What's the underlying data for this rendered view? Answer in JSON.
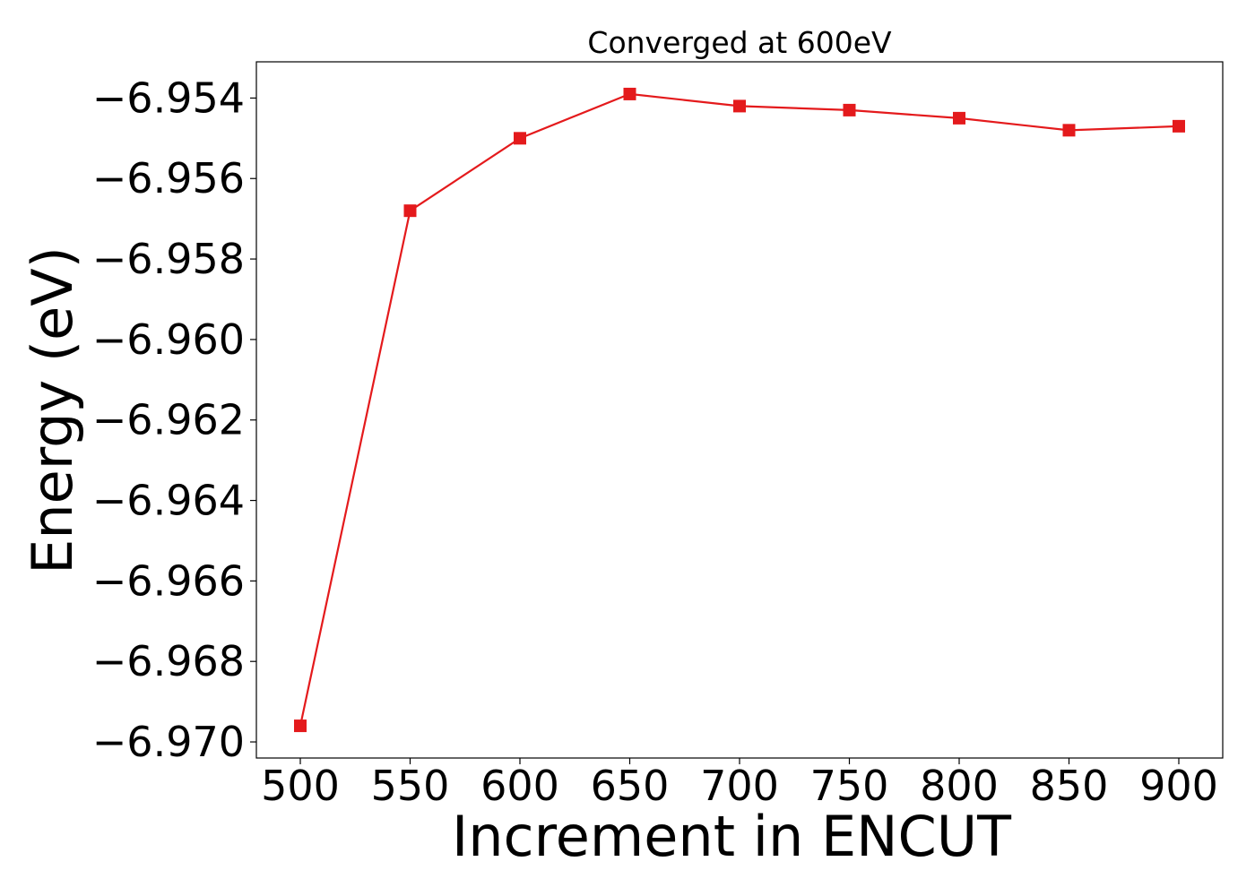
{
  "chart_data": {
    "type": "line",
    "title": "Converged at 600eV",
    "xlabel": "Increment in ENCUT",
    "ylabel": "Energy (eV)",
    "x": [
      500,
      550,
      600,
      650,
      700,
      750,
      800,
      850,
      900
    ],
    "series": [
      {
        "values": [
          -6.9696,
          -6.9568,
          -6.955,
          -6.9539,
          -6.9542,
          -6.9543,
          -6.9545,
          -6.9548,
          -6.9547
        ],
        "color": "#e41a1c",
        "marker": "square"
      }
    ],
    "xticks": [
      500,
      550,
      600,
      650,
      700,
      750,
      800,
      850,
      900
    ],
    "xtick_labels": [
      "500",
      "550",
      "600",
      "650",
      "700",
      "750",
      "800",
      "850",
      "900"
    ],
    "yticks": [
      -6.954,
      -6.956,
      -6.958,
      -6.96,
      -6.962,
      -6.964,
      -6.966,
      -6.968,
      -6.97
    ],
    "ytick_labels": [
      "−6.954",
      "−6.956",
      "−6.958",
      "−6.960",
      "−6.962",
      "−6.964",
      "−6.966",
      "−6.968",
      "−6.970"
    ],
    "xlim": [
      480,
      920
    ],
    "ylim": [
      -6.9704,
      -6.9531
    ],
    "grid": false,
    "legend": "none"
  }
}
